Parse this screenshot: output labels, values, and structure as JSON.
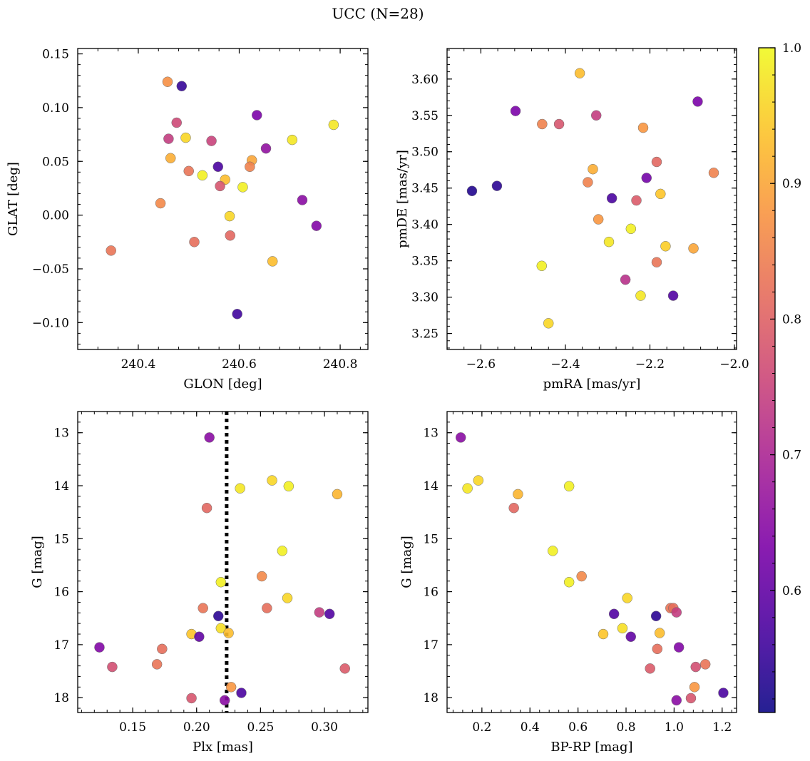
{
  "figure": {
    "title": "UCC (N=28)"
  },
  "colorbar": {
    "colormap": "plasma",
    "range": [
      0.51,
      1.0
    ],
    "ticks": [
      0.6,
      0.7,
      0.8,
      0.9,
      1.0
    ],
    "tick_labels": [
      "0.6",
      "0.7",
      "0.8",
      "0.9",
      "1.0"
    ]
  },
  "chart_data": [
    {
      "type": "scatter",
      "xlabel": "GLON [deg]",
      "ylabel": "GLAT [deg]",
      "xlim": [
        240.28,
        240.855
      ],
      "ylim": [
        -0.125,
        0.155
      ],
      "xticks": [
        240.4,
        240.6,
        240.8
      ],
      "xtick_labels": [
        "240.4",
        "240.6",
        "240.8"
      ],
      "yticks": [
        -0.1,
        -0.05,
        0.0,
        0.05,
        0.1,
        0.15
      ],
      "ytick_labels": [
        "−0.10",
        "−0.05",
        "0.00",
        "0.05",
        "0.10",
        "0.15"
      ],
      "points": [
        {
          "x": 240.458,
          "y": 0.124,
          "c": 0.87
        },
        {
          "x": 240.486,
          "y": 0.12,
          "c": 0.55
        },
        {
          "x": 240.476,
          "y": 0.086,
          "c": 0.76
        },
        {
          "x": 240.46,
          "y": 0.071,
          "c": 0.74
        },
        {
          "x": 240.494,
          "y": 0.072,
          "c": 0.96
        },
        {
          "x": 240.545,
          "y": 0.069,
          "c": 0.75
        },
        {
          "x": 240.464,
          "y": 0.053,
          "c": 0.91
        },
        {
          "x": 240.5,
          "y": 0.041,
          "c": 0.83
        },
        {
          "x": 240.527,
          "y": 0.037,
          "c": 0.99
        },
        {
          "x": 240.558,
          "y": 0.045,
          "c": 0.57
        },
        {
          "x": 240.572,
          "y": 0.033,
          "c": 0.93
        },
        {
          "x": 240.562,
          "y": 0.027,
          "c": 0.78
        },
        {
          "x": 240.635,
          "y": 0.093,
          "c": 0.63
        },
        {
          "x": 240.653,
          "y": 0.062,
          "c": 0.66
        },
        {
          "x": 240.625,
          "y": 0.051,
          "c": 0.9
        },
        {
          "x": 240.621,
          "y": 0.045,
          "c": 0.85
        },
        {
          "x": 240.607,
          "y": 0.026,
          "c": 0.99
        },
        {
          "x": 240.705,
          "y": 0.07,
          "c": 0.98
        },
        {
          "x": 240.787,
          "y": 0.084,
          "c": 0.98
        },
        {
          "x": 240.444,
          "y": 0.011,
          "c": 0.86
        },
        {
          "x": 240.581,
          "y": -0.001,
          "c": 0.96
        },
        {
          "x": 240.725,
          "y": 0.014,
          "c": 0.65
        },
        {
          "x": 240.753,
          "y": -0.01,
          "c": 0.64
        },
        {
          "x": 240.582,
          "y": -0.019,
          "c": 0.81
        },
        {
          "x": 240.511,
          "y": -0.025,
          "c": 0.82
        },
        {
          "x": 240.346,
          "y": -0.033,
          "c": 0.83
        },
        {
          "x": 240.666,
          "y": -0.043,
          "c": 0.93
        },
        {
          "x": 240.596,
          "y": -0.092,
          "c": 0.56
        }
      ]
    },
    {
      "type": "scatter",
      "xlabel": "pmRA [mas/yr]",
      "ylabel": "pmDE [mas/yr]",
      "xlim": [
        -2.68,
        -1.995
      ],
      "ylim": [
        3.228,
        3.642
      ],
      "xticks": [
        -2.6,
        -2.4,
        -2.2,
        -2.0
      ],
      "xtick_labels": [
        "−2.6",
        "−2.4",
        "−2.2",
        "−2.0"
      ],
      "yticks": [
        3.25,
        3.3,
        3.35,
        3.4,
        3.45,
        3.5,
        3.55,
        3.6
      ],
      "ytick_labels": [
        "3.25",
        "3.30",
        "3.35",
        "3.40",
        "3.45",
        "3.50",
        "3.55",
        "3.60"
      ],
      "points": [
        {
          "x": -2.366,
          "y": 3.608,
          "c": 0.93
        },
        {
          "x": -2.087,
          "y": 3.569,
          "c": 0.63
        },
        {
          "x": -2.518,
          "y": 3.556,
          "c": 0.63
        },
        {
          "x": -2.327,
          "y": 3.55,
          "c": 0.74
        },
        {
          "x": -2.455,
          "y": 3.538,
          "c": 0.85
        },
        {
          "x": -2.415,
          "y": 3.538,
          "c": 0.78
        },
        {
          "x": -2.216,
          "y": 3.533,
          "c": 0.88
        },
        {
          "x": -2.184,
          "y": 3.486,
          "c": 0.81
        },
        {
          "x": -2.335,
          "y": 3.476,
          "c": 0.91
        },
        {
          "x": -2.049,
          "y": 3.471,
          "c": 0.85
        },
        {
          "x": -2.208,
          "y": 3.464,
          "c": 0.62
        },
        {
          "x": -2.347,
          "y": 3.458,
          "c": 0.85
        },
        {
          "x": -2.621,
          "y": 3.446,
          "c": 0.53
        },
        {
          "x": -2.562,
          "y": 3.453,
          "c": 0.54
        },
        {
          "x": -2.175,
          "y": 3.442,
          "c": 0.94
        },
        {
          "x": -2.29,
          "y": 3.436,
          "c": 0.57
        },
        {
          "x": -2.232,
          "y": 3.433,
          "c": 0.79
        },
        {
          "x": -2.322,
          "y": 3.407,
          "c": 0.88
        },
        {
          "x": -2.245,
          "y": 3.394,
          "c": 0.99
        },
        {
          "x": -2.297,
          "y": 3.376,
          "c": 0.98
        },
        {
          "x": -2.163,
          "y": 3.37,
          "c": 0.95
        },
        {
          "x": -2.097,
          "y": 3.367,
          "c": 0.9
        },
        {
          "x": -2.184,
          "y": 3.348,
          "c": 0.83
        },
        {
          "x": -2.456,
          "y": 3.343,
          "c": 0.99
        },
        {
          "x": -2.258,
          "y": 3.324,
          "c": 0.72
        },
        {
          "x": -2.222,
          "y": 3.302,
          "c": 0.98
        },
        {
          "x": -2.145,
          "y": 3.302,
          "c": 0.58
        },
        {
          "x": -2.44,
          "y": 3.264,
          "c": 0.96
        }
      ]
    },
    {
      "type": "scatter",
      "xlabel": "Plx [mas]",
      "ylabel": "G [mag]",
      "xlim": [
        0.107,
        0.334
      ],
      "ylim": [
        18.28,
        12.6
      ],
      "y_inverted": true,
      "xticks": [
        0.15,
        0.2,
        0.25,
        0.3
      ],
      "xtick_labels": [
        "0.15",
        "0.20",
        "0.25",
        "0.30"
      ],
      "yticks": [
        13,
        14,
        15,
        16,
        17,
        18
      ],
      "ytick_labels": [
        "13",
        "14",
        "15",
        "16",
        "17",
        "18"
      ],
      "vline": {
        "x": 0.2235,
        "style": "dotted",
        "color": "#000000"
      },
      "points": [
        {
          "x": 0.21,
          "y": 13.09,
          "c": 0.65
        },
        {
          "x": 0.234,
          "y": 14.05,
          "c": 0.98
        },
        {
          "x": 0.259,
          "y": 13.9,
          "c": 0.96
        },
        {
          "x": 0.272,
          "y": 14.01,
          "c": 0.99
        },
        {
          "x": 0.31,
          "y": 14.16,
          "c": 0.92
        },
        {
          "x": 0.208,
          "y": 14.42,
          "c": 0.81
        },
        {
          "x": 0.267,
          "y": 15.23,
          "c": 0.99
        },
        {
          "x": 0.251,
          "y": 15.71,
          "c": 0.86
        },
        {
          "x": 0.219,
          "y": 15.82,
          "c": 0.99
        },
        {
          "x": 0.271,
          "y": 16.12,
          "c": 0.96
        },
        {
          "x": 0.205,
          "y": 16.31,
          "c": 0.83
        },
        {
          "x": 0.255,
          "y": 16.31,
          "c": 0.82
        },
        {
          "x": 0.296,
          "y": 16.39,
          "c": 0.74
        },
        {
          "x": 0.304,
          "y": 16.42,
          "c": 0.58
        },
        {
          "x": 0.217,
          "y": 16.46,
          "c": 0.54
        },
        {
          "x": 0.219,
          "y": 16.69,
          "c": 0.97
        },
        {
          "x": 0.196,
          "y": 16.8,
          "c": 0.94
        },
        {
          "x": 0.225,
          "y": 16.78,
          "c": 0.93
        },
        {
          "x": 0.202,
          "y": 16.85,
          "c": 0.6
        },
        {
          "x": 0.124,
          "y": 17.05,
          "c": 0.64
        },
        {
          "x": 0.173,
          "y": 17.08,
          "c": 0.82
        },
        {
          "x": 0.169,
          "y": 17.37,
          "c": 0.83
        },
        {
          "x": 0.134,
          "y": 17.42,
          "c": 0.77
        },
        {
          "x": 0.316,
          "y": 17.45,
          "c": 0.79
        },
        {
          "x": 0.227,
          "y": 17.8,
          "c": 0.88
        },
        {
          "x": 0.235,
          "y": 17.91,
          "c": 0.57
        },
        {
          "x": 0.196,
          "y": 18.01,
          "c": 0.78
        },
        {
          "x": 0.222,
          "y": 18.05,
          "c": 0.65
        }
      ]
    },
    {
      "type": "scatter",
      "xlabel": "BP-RP [mag]",
      "ylabel": "G [mag]",
      "xlim": [
        0.055,
        1.26
      ],
      "ylim": [
        18.28,
        12.6
      ],
      "y_inverted": true,
      "xticks": [
        0.2,
        0.4,
        0.6,
        0.8,
        1.0,
        1.2
      ],
      "xtick_labels": [
        "0.2",
        "0.4",
        "0.6",
        "0.8",
        "1.0",
        "1.2"
      ],
      "yticks": [
        13,
        14,
        15,
        16,
        17,
        18
      ],
      "ytick_labels": [
        "13",
        "14",
        "15",
        "16",
        "17",
        "18"
      ],
      "points": [
        {
          "x": 0.112,
          "y": 13.09,
          "c": 0.65
        },
        {
          "x": 0.14,
          "y": 14.05,
          "c": 0.98
        },
        {
          "x": 0.185,
          "y": 13.9,
          "c": 0.96
        },
        {
          "x": 0.35,
          "y": 14.16,
          "c": 0.92
        },
        {
          "x": 0.333,
          "y": 14.42,
          "c": 0.81
        },
        {
          "x": 0.563,
          "y": 14.01,
          "c": 0.99
        },
        {
          "x": 0.495,
          "y": 15.23,
          "c": 0.99
        },
        {
          "x": 0.615,
          "y": 15.71,
          "c": 0.86
        },
        {
          "x": 0.563,
          "y": 15.82,
          "c": 0.99
        },
        {
          "x": 0.805,
          "y": 16.12,
          "c": 0.96
        },
        {
          "x": 0.985,
          "y": 16.31,
          "c": 0.83
        },
        {
          "x": 0.997,
          "y": 16.31,
          "c": 0.82
        },
        {
          "x": 1.01,
          "y": 16.39,
          "c": 0.74
        },
        {
          "x": 0.75,
          "y": 16.42,
          "c": 0.58
        },
        {
          "x": 0.925,
          "y": 16.46,
          "c": 0.54
        },
        {
          "x": 0.785,
          "y": 16.69,
          "c": 0.97
        },
        {
          "x": 0.705,
          "y": 16.8,
          "c": 0.94
        },
        {
          "x": 0.94,
          "y": 16.78,
          "c": 0.93
        },
        {
          "x": 0.82,
          "y": 16.85,
          "c": 0.6
        },
        {
          "x": 1.02,
          "y": 17.05,
          "c": 0.64
        },
        {
          "x": 0.93,
          "y": 17.08,
          "c": 0.82
        },
        {
          "x": 1.13,
          "y": 17.37,
          "c": 0.83
        },
        {
          "x": 1.09,
          "y": 17.42,
          "c": 0.77
        },
        {
          "x": 0.9,
          "y": 17.45,
          "c": 0.79
        },
        {
          "x": 1.085,
          "y": 17.8,
          "c": 0.88
        },
        {
          "x": 1.205,
          "y": 17.91,
          "c": 0.57
        },
        {
          "x": 1.07,
          "y": 18.01,
          "c": 0.78
        },
        {
          "x": 1.01,
          "y": 18.05,
          "c": 0.65
        }
      ]
    }
  ]
}
